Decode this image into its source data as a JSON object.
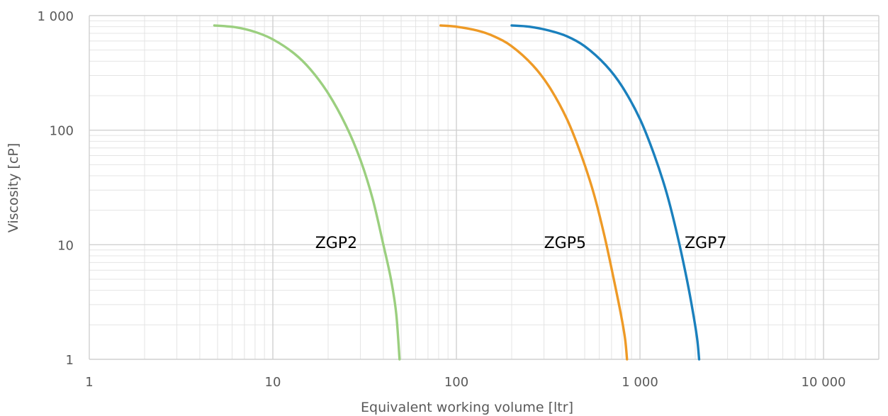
{
  "chart_data": {
    "type": "line",
    "title": "",
    "xlabel": "Equivalent working volume [ltr]",
    "ylabel": "Viscosity [cP]",
    "x_scale": "log",
    "y_scale": "log",
    "xlim": [
      1,
      20000
    ],
    "ylim": [
      1,
      1000
    ],
    "grid": true,
    "legend": "none (series labelled inline)",
    "x_ticks": [
      1,
      10,
      100,
      1000,
      10000
    ],
    "x_tick_labels": [
      "1",
      "10",
      "100",
      "1 000",
      "10 000"
    ],
    "y_ticks": [
      1,
      10,
      100,
      1000
    ],
    "y_tick_labels": [
      "1",
      "10",
      "100",
      "1 000"
    ],
    "series": [
      {
        "name": "ZGP2",
        "color": "#9BCF7F",
        "x": [
          4.8,
          6.3,
          8.0,
          10.0,
          13.0,
          16.0,
          20.0,
          25.0,
          30.0,
          35.0,
          40.0,
          44.0,
          47.0,
          49.0
        ],
        "y": [
          820,
          790,
          720,
          620,
          470,
          340,
          210,
          110,
          55,
          25,
          10,
          5,
          2.5,
          1
        ]
      },
      {
        "name": "ZGP5",
        "color": "#EE9A26",
        "x": [
          82,
          100,
          130,
          160,
          200,
          260,
          320,
          400,
          480,
          560,
          640,
          720,
          790,
          830,
          850
        ],
        "y": [
          820,
          800,
          740,
          660,
          540,
          370,
          240,
          125,
          60,
          28,
          12,
          5,
          2.4,
          1.5,
          1
        ]
      },
      {
        "name": "ZGP7",
        "color": "#1A80BD",
        "x": [
          200,
          250,
          320,
          400,
          500,
          650,
          800,
          1000,
          1200,
          1400,
          1600,
          1800,
          1950,
          2050,
          2100
        ],
        "y": [
          820,
          800,
          740,
          660,
          540,
          370,
          240,
          125,
          60,
          28,
          12,
          5,
          2.5,
          1.5,
          1
        ]
      }
    ],
    "annotations": [
      {
        "text": "ZGP2",
        "x": 17,
        "y": 10.5
      },
      {
        "text": "ZGP5",
        "x": 300,
        "y": 10.5
      },
      {
        "text": "ZGP7",
        "x": 1750,
        "y": 10.5
      }
    ]
  }
}
